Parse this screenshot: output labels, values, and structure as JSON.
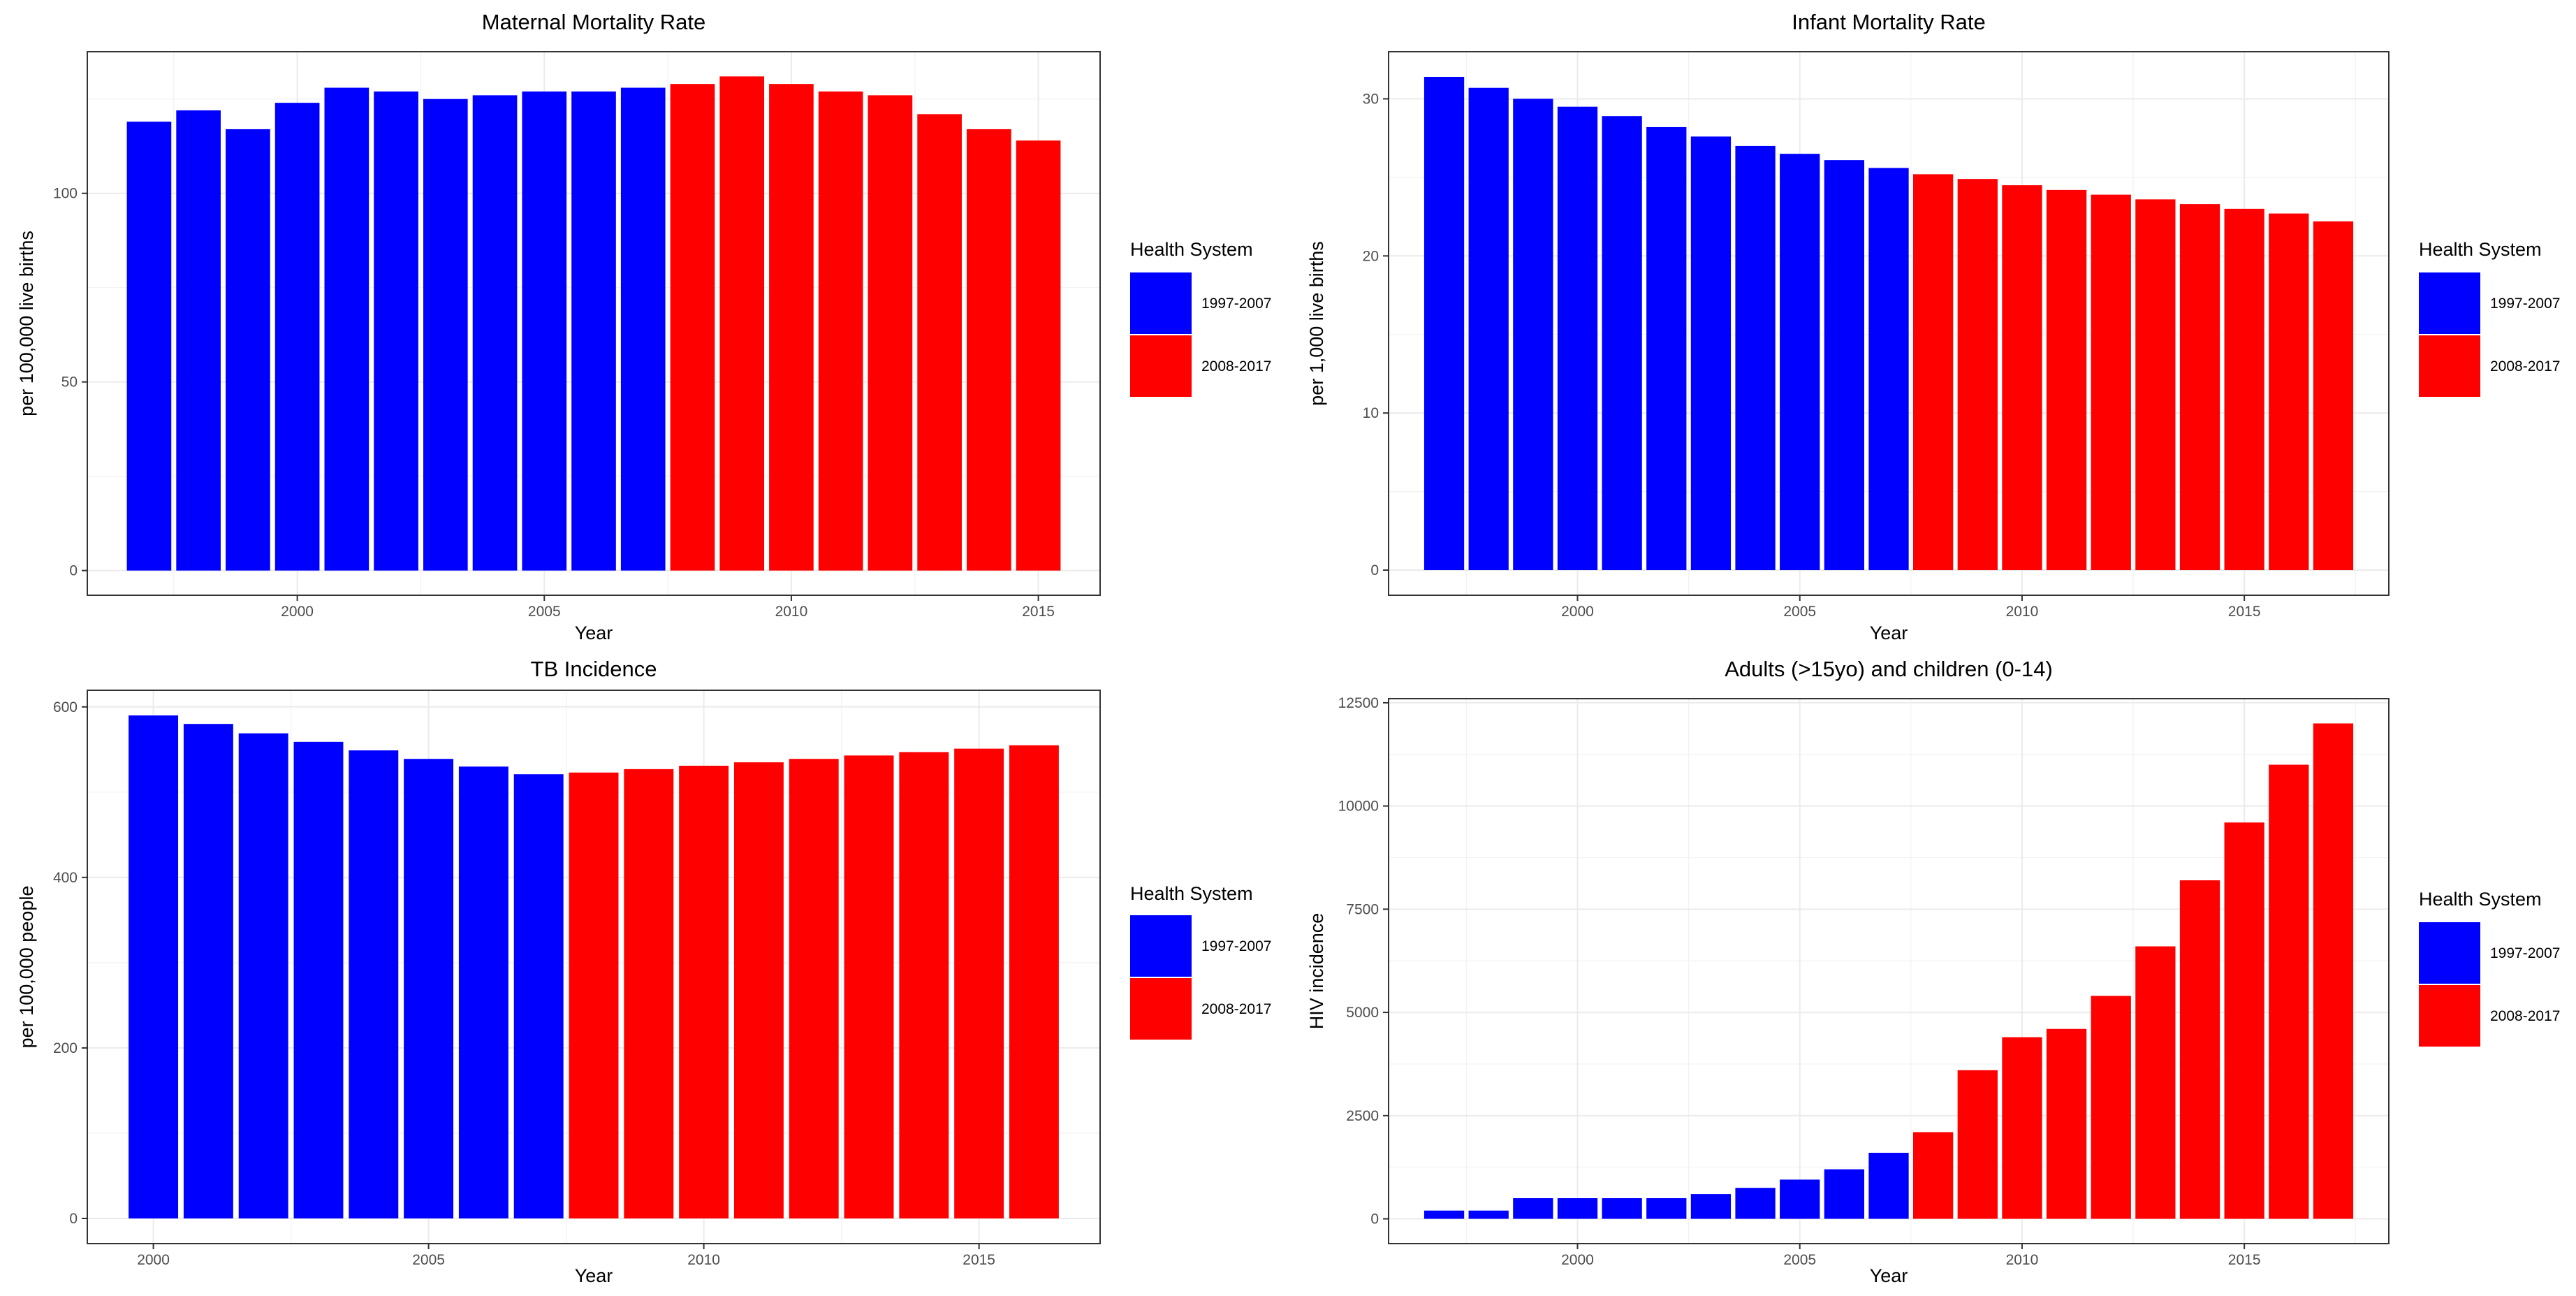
{
  "legend": {
    "title": "Health System",
    "entries": [
      {
        "label": "1997-2007",
        "color": "#0000ff"
      },
      {
        "label": "2008-2017",
        "color": "#ff0000"
      }
    ]
  },
  "chart_data": [
    {
      "type": "bar",
      "title": "Maternal Mortality Rate",
      "xlabel": "Year",
      "ylabel": "per 100,000 live births",
      "x": [
        1997,
        1998,
        1999,
        2000,
        2001,
        2002,
        2003,
        2004,
        2005,
        2006,
        2007,
        2008,
        2009,
        2010,
        2011,
        2012,
        2013,
        2014,
        2015
      ],
      "values": [
        119,
        122,
        117,
        124,
        128,
        127,
        125,
        126,
        127,
        127,
        128,
        129,
        131,
        129,
        127,
        126,
        121,
        117,
        114
      ],
      "groups": [
        "1997-2007",
        "1997-2007",
        "1997-2007",
        "1997-2007",
        "1997-2007",
        "1997-2007",
        "1997-2007",
        "1997-2007",
        "1997-2007",
        "1997-2007",
        "1997-2007",
        "2008-2017",
        "2008-2017",
        "2008-2017",
        "2008-2017",
        "2008-2017",
        "2008-2017",
        "2008-2017",
        "2008-2017"
      ],
      "xlim": [
        1995.75,
        2016.25
      ],
      "ylim": [
        -6.55,
        137.55
      ],
      "xticks": [
        2000,
        2005,
        2010,
        2015
      ],
      "yticks": [
        0,
        50,
        100
      ],
      "grid": true
    },
    {
      "type": "bar",
      "title": "Infant Mortality Rate",
      "xlabel": "Year",
      "ylabel": "per 1,000 live births",
      "x": [
        1997,
        1998,
        1999,
        2000,
        2001,
        2002,
        2003,
        2004,
        2005,
        2006,
        2007,
        2008,
        2009,
        2010,
        2011,
        2012,
        2013,
        2014,
        2015,
        2016,
        2017
      ],
      "values": [
        31.4,
        30.7,
        30.0,
        29.5,
        28.9,
        28.2,
        27.6,
        27.0,
        26.5,
        26.1,
        25.6,
        25.2,
        24.9,
        24.5,
        24.2,
        23.9,
        23.6,
        23.3,
        23.0,
        22.7,
        22.2
      ],
      "groups": [
        "1997-2007",
        "1997-2007",
        "1997-2007",
        "1997-2007",
        "1997-2007",
        "1997-2007",
        "1997-2007",
        "1997-2007",
        "1997-2007",
        "1997-2007",
        "1997-2007",
        "2008-2017",
        "2008-2017",
        "2008-2017",
        "2008-2017",
        "2008-2017",
        "2008-2017",
        "2008-2017",
        "2008-2017",
        "2008-2017",
        "2008-2017"
      ],
      "xlim": [
        1995.75,
        2018.25
      ],
      "ylim": [
        -1.6,
        33.0
      ],
      "xticks": [
        2000,
        2005,
        2010,
        2015
      ],
      "yticks": [
        0,
        10,
        20,
        30
      ],
      "grid": true
    },
    {
      "type": "bar",
      "title": "TB Incidence",
      "xlabel": "Year",
      "ylabel": "per 100,000 people",
      "x": [
        2000,
        2001,
        2002,
        2003,
        2004,
        2005,
        2006,
        2007,
        2008,
        2009,
        2010,
        2011,
        2012,
        2013,
        2014,
        2015,
        2016
      ],
      "values": [
        590,
        580,
        569,
        559,
        549,
        539,
        530,
        521,
        523,
        527,
        531,
        535,
        539,
        543,
        547,
        551,
        555
      ],
      "groups": [
        "1997-2007",
        "1997-2007",
        "1997-2007",
        "1997-2007",
        "1997-2007",
        "1997-2007",
        "1997-2007",
        "1997-2007",
        "2008-2017",
        "2008-2017",
        "2008-2017",
        "2008-2017",
        "2008-2017",
        "2008-2017",
        "2008-2017",
        "2008-2017",
        "2008-2017"
      ],
      "xlim": [
        1998.8,
        2017.2
      ],
      "ylim": [
        -29.5,
        619.5
      ],
      "xticks": [
        2000,
        2005,
        2010,
        2015
      ],
      "yticks": [
        0,
        200,
        400,
        600
      ],
      "grid": true
    },
    {
      "type": "bar",
      "title": "Adults (>15yo) and children (0-14)",
      "xlabel": "Year",
      "ylabel": "HIV incidence",
      "x": [
        1997,
        1998,
        1999,
        2000,
        2001,
        2002,
        2003,
        2004,
        2005,
        2006,
        2007,
        2008,
        2009,
        2010,
        2011,
        2012,
        2013,
        2014,
        2015,
        2016,
        2017
      ],
      "values": [
        200,
        200,
        500,
        500,
        500,
        500,
        600,
        750,
        950,
        1200,
        1600,
        2100,
        3600,
        4400,
        4600,
        5400,
        6600,
        8200,
        9600,
        11000,
        12000
      ],
      "groups": [
        "1997-2007",
        "1997-2007",
        "1997-2007",
        "1997-2007",
        "1997-2007",
        "1997-2007",
        "1997-2007",
        "1997-2007",
        "1997-2007",
        "1997-2007",
        "1997-2007",
        "2008-2017",
        "2008-2017",
        "2008-2017",
        "2008-2017",
        "2008-2017",
        "2008-2017",
        "2008-2017",
        "2008-2017",
        "2008-2017",
        "2008-2017"
      ],
      "xlim": [
        1995.75,
        2018.25
      ],
      "ylim": [
        -600,
        12600
      ],
      "xticks": [
        2000,
        2005,
        2010,
        2015
      ],
      "yticks": [
        0,
        2500,
        5000,
        7500,
        10000,
        12500
      ],
      "grid": true
    }
  ]
}
